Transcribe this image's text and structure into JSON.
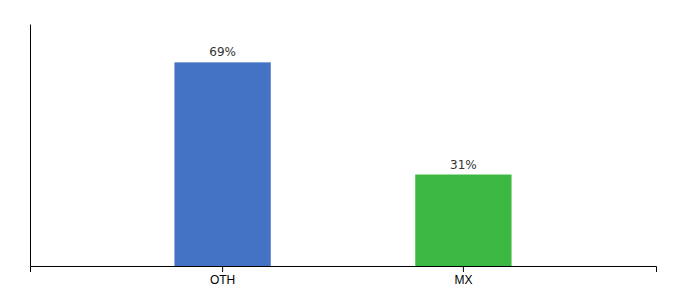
{
  "chart_data": {
    "type": "bar",
    "categories": [
      "OTH",
      "MX"
    ],
    "values": [
      69,
      31
    ],
    "value_labels": [
      "69%",
      "31%"
    ],
    "colors": [
      "#4472c4",
      "#3cb943"
    ],
    "ylim": [
      0,
      82
    ],
    "data_labels": true,
    "tick_labels": "x"
  }
}
